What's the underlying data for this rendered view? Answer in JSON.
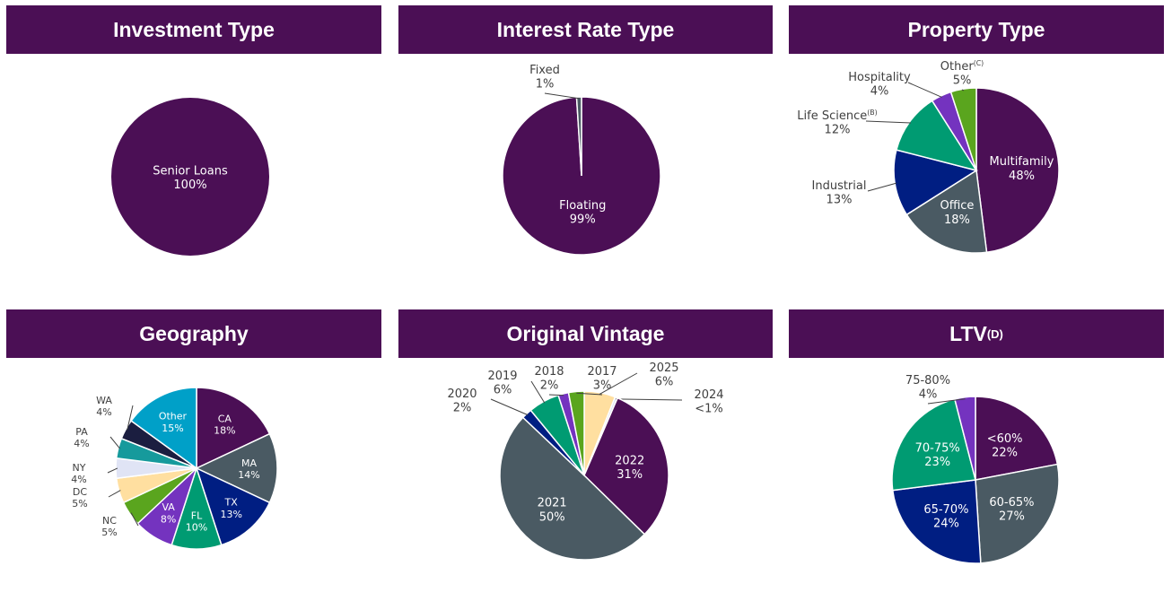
{
  "colors": {
    "header_bg": "#4B0F55",
    "header_text": "#FFFFFF",
    "label_text": "#404040"
  },
  "chart_data": [
    {
      "type": "pie",
      "title": "Investment Type",
      "title_sup": "",
      "slices": [
        {
          "label": "Senior Loans",
          "sup": "",
          "value": 100,
          "display": "100%",
          "color": "#4B0F55"
        }
      ]
    },
    {
      "type": "pie",
      "title": "Interest Rate Type",
      "title_sup": "",
      "slices": [
        {
          "label": "Floating",
          "sup": "",
          "value": 99,
          "display": "99%",
          "color": "#4B0F55"
        },
        {
          "label": "Fixed",
          "sup": "",
          "value": 1,
          "display": "1%",
          "color": "#4A5A63"
        }
      ]
    },
    {
      "type": "pie",
      "title": "Property Type",
      "title_sup": "",
      "slices": [
        {
          "label": "Multifamily",
          "sup": "",
          "value": 48,
          "display": "48%",
          "color": "#4B0F55"
        },
        {
          "label": "Office",
          "sup": "",
          "value": 18,
          "display": "18%",
          "color": "#4A5A63"
        },
        {
          "label": "Industrial",
          "sup": "",
          "value": 13,
          "display": "13%",
          "color": "#001E82"
        },
        {
          "label": "Life Science",
          "sup": "(B)",
          "value": 12,
          "display": "12%",
          "color": "#009B72"
        },
        {
          "label": "Hospitality",
          "sup": "",
          "value": 4,
          "display": "4%",
          "color": "#7433BF"
        },
        {
          "label": "Other",
          "sup": "(C)",
          "value": 5,
          "display": "5%",
          "color": "#5AA51E"
        }
      ]
    },
    {
      "type": "pie",
      "title": "Geography",
      "title_sup": "",
      "slices": [
        {
          "label": "CA",
          "sup": "",
          "value": 18,
          "display": "18%",
          "color": "#4B0F55"
        },
        {
          "label": "MA",
          "sup": "",
          "value": 14,
          "display": "14%",
          "color": "#4A5A63"
        },
        {
          "label": "TX",
          "sup": "",
          "value": 13,
          "display": "13%",
          "color": "#001E82"
        },
        {
          "label": "FL",
          "sup": "",
          "value": 10,
          "display": "10%",
          "color": "#009B72"
        },
        {
          "label": "VA",
          "sup": "",
          "value": 8,
          "display": "8%",
          "color": "#7433BF"
        },
        {
          "label": "NC",
          "sup": "",
          "value": 5,
          "display": "5%",
          "color": "#5AA51E"
        },
        {
          "label": "DC",
          "sup": "",
          "value": 5,
          "display": "5%",
          "color": "#FFDFA0"
        },
        {
          "label": "NY",
          "sup": "",
          "value": 4,
          "display": "4%",
          "color": "#E0E4F5"
        },
        {
          "label": "PA",
          "sup": "",
          "value": 4,
          "display": "4%",
          "color": "#169A9C"
        },
        {
          "label": "WA",
          "sup": "",
          "value": 4,
          "display": "4%",
          "color": "#1B1E40"
        },
        {
          "label": "Other",
          "sup": "",
          "value": 15,
          "display": "15%",
          "color": "#00A0C8"
        }
      ]
    },
    {
      "type": "pie",
      "title": "Original Vintage",
      "title_sup": "",
      "slices": [
        {
          "label": "2025",
          "sup": "",
          "value": 6,
          "display": "6%",
          "color": "#FFDFA0"
        },
        {
          "label": "2024",
          "sup": "",
          "value": 0.5,
          "display": "<1%",
          "color": "#E0E4F5"
        },
        {
          "label": "2022",
          "sup": "",
          "value": 31,
          "display": "31%",
          "color": "#4B0F55"
        },
        {
          "label": "2021",
          "sup": "",
          "value": 50,
          "display": "50%",
          "color": "#4A5A63"
        },
        {
          "label": "2020",
          "sup": "",
          "value": 2,
          "display": "2%",
          "color": "#001E82"
        },
        {
          "label": "2019",
          "sup": "",
          "value": 6,
          "display": "6%",
          "color": "#009B72"
        },
        {
          "label": "2018",
          "sup": "",
          "value": 2,
          "display": "2%",
          "color": "#7433BF"
        },
        {
          "label": "2017",
          "sup": "",
          "value": 3,
          "display": "3%",
          "color": "#5AA51E"
        }
      ]
    },
    {
      "type": "pie",
      "title": "LTV",
      "title_sup": "(D)",
      "slices": [
        {
          "label": "<60%",
          "sup": "",
          "value": 22,
          "display": "22%",
          "color": "#4B0F55"
        },
        {
          "label": "60-65%",
          "sup": "",
          "value": 27,
          "display": "27%",
          "color": "#4A5A63"
        },
        {
          "label": "65-70%",
          "sup": "",
          "value": 24,
          "display": "24%",
          "color": "#001E82"
        },
        {
          "label": "70-75%",
          "sup": "",
          "value": 23,
          "display": "23%",
          "color": "#009B72"
        },
        {
          "label": "75-80%",
          "sup": "",
          "value": 4,
          "display": "4%",
          "color": "#7433BF"
        }
      ]
    }
  ]
}
